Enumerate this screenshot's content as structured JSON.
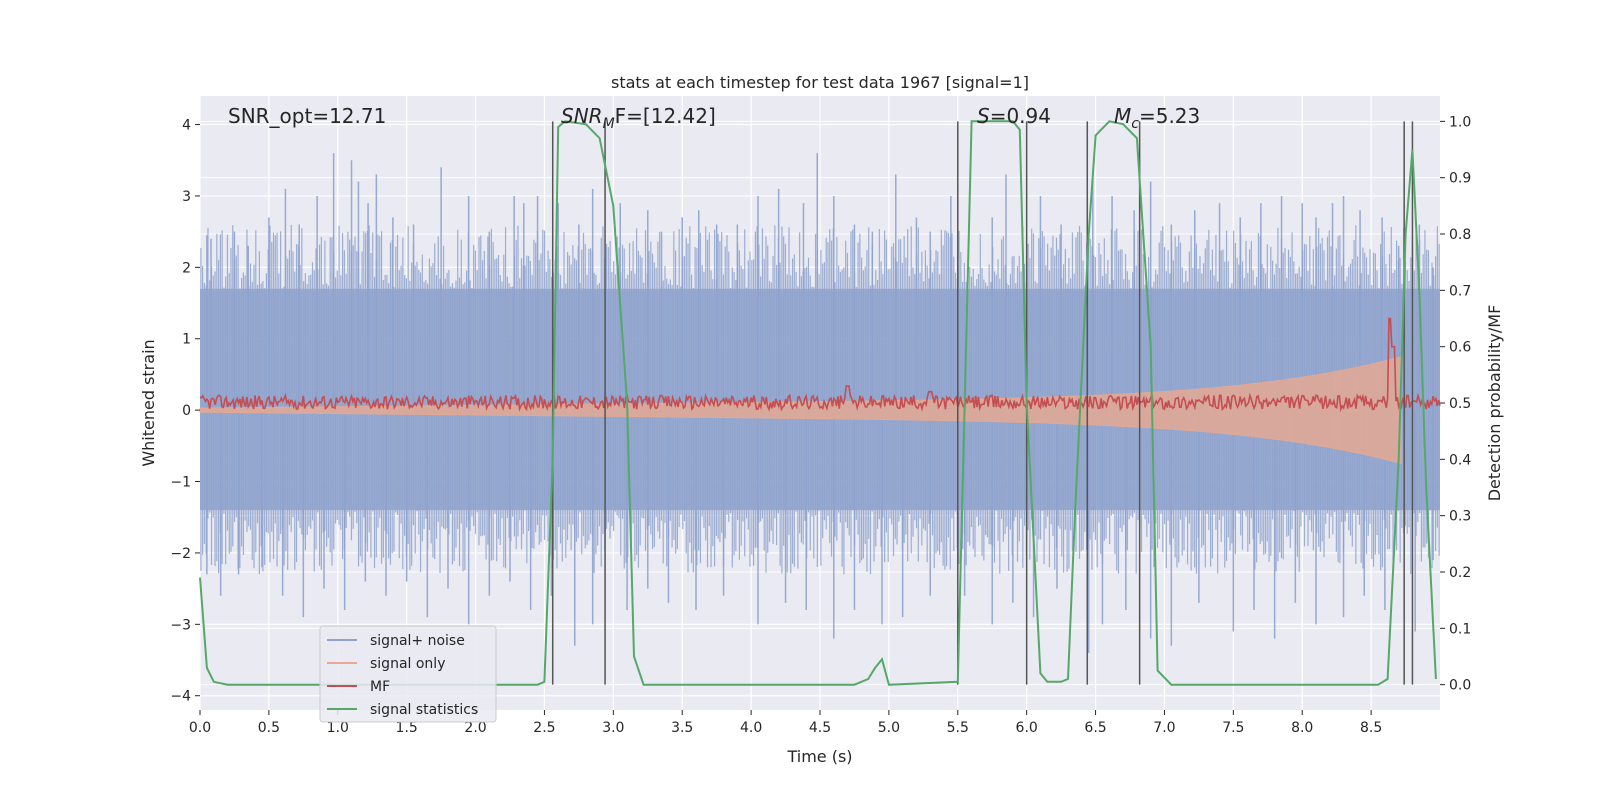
{
  "chart_data": {
    "type": "line",
    "title": "stats at each timestep for test data 1967 [signal=1]",
    "xlabel": "Time (s)",
    "ylabel": "Whitened strain",
    "y2label": "Detection probability/MF",
    "xlim": [
      0,
      9.0
    ],
    "ylim": [
      -4.2,
      4.4
    ],
    "y2lim": [
      -0.045,
      1.045
    ],
    "xticks": [
      "0.0",
      "0.5",
      "1.0",
      "1.5",
      "2.0",
      "2.5",
      "3.0",
      "3.5",
      "4.0",
      "4.5",
      "5.0",
      "5.5",
      "6.0",
      "6.5",
      "7.0",
      "7.5",
      "8.0",
      "8.5"
    ],
    "yticks": [
      "4",
      "3",
      "2",
      "1",
      "0",
      "−1",
      "−2",
      "−3",
      "−4"
    ],
    "y2ticks": [
      "1.0",
      "0.9",
      "0.8",
      "0.7",
      "0.6",
      "0.5",
      "0.4",
      "0.3",
      "0.2",
      "0.1",
      "0.0"
    ],
    "annotations": {
      "snr_opt": "SNR_opt=12.71",
      "snr_mf_main": "SNR",
      "snr_mf_sub": "M",
      "snr_mf_tail": "F=[12.42]",
      "s_main": "S",
      "s_tail": "=0.94",
      "mc_main": "M",
      "mc_sub": "c",
      "mc_tail": "=5.23"
    },
    "legend": {
      "position": "lower-left",
      "entries": [
        {
          "label": "signal+ noise",
          "color": "#8ea2cd"
        },
        {
          "label": "signal only",
          "color": "#e8a98f"
        },
        {
          "label": "MF",
          "color": "#c44e52"
        },
        {
          "label": "signal statistics",
          "color": "#55a868"
        }
      ]
    },
    "vertical_lines_s": [
      2.56,
      2.94,
      5.5,
      6.0,
      6.44,
      6.82,
      8.74,
      8.8
    ],
    "signal_envelope": {
      "name": "signal only",
      "t_end": 8.72,
      "amp_start": 0.03,
      "amp_mid": 0.2,
      "amp_end": 0.75
    },
    "noise_band": {
      "name": "signal+ noise",
      "dense_upper": 1.7,
      "dense_lower": -1.4,
      "spikes_up": [
        [
          0.05,
          2.45
        ],
        [
          0.08,
          2.4
        ],
        [
          0.25,
          2.5
        ],
        [
          0.35,
          2.3
        ],
        [
          0.5,
          2.7
        ],
        [
          0.62,
          3.1
        ],
        [
          0.72,
          2.6
        ],
        [
          0.85,
          3.0
        ],
        [
          0.97,
          3.6
        ],
        [
          1.1,
          3.5
        ],
        [
          1.15,
          3.2
        ],
        [
          1.22,
          2.9
        ],
        [
          1.28,
          3.3
        ],
        [
          1.4,
          2.7
        ],
        [
          1.55,
          2.6
        ],
        [
          1.75,
          3.4
        ],
        [
          1.95,
          3.0
        ],
        [
          2.1,
          2.5
        ],
        [
          2.28,
          3.0
        ],
        [
          2.35,
          2.9
        ],
        [
          2.45,
          3.0
        ],
        [
          2.6,
          2.9
        ],
        [
          2.75,
          2.6
        ],
        [
          2.85,
          3.1
        ],
        [
          3.05,
          2.9
        ],
        [
          3.25,
          2.8
        ],
        [
          3.35,
          2.5
        ],
        [
          3.5,
          2.7
        ],
        [
          3.62,
          2.8
        ],
        [
          3.75,
          2.6
        ],
        [
          3.9,
          2.6
        ],
        [
          4.05,
          3.0
        ],
        [
          4.2,
          3.1
        ],
        [
          4.38,
          2.9
        ],
        [
          4.48,
          3.6
        ],
        [
          4.6,
          3.0
        ],
        [
          4.75,
          2.6
        ],
        [
          4.88,
          2.5
        ],
        [
          5.05,
          3.3
        ],
        [
          5.2,
          2.7
        ],
        [
          5.3,
          2.5
        ],
        [
          5.45,
          3.0
        ],
        [
          5.75,
          2.7
        ],
        [
          5.85,
          3.3
        ],
        [
          6.1,
          3.0
        ],
        [
          6.25,
          2.6
        ],
        [
          6.48,
          3.3
        ],
        [
          6.62,
          3.0
        ],
        [
          6.78,
          2.8
        ],
        [
          6.9,
          3.2
        ],
        [
          7.05,
          2.6
        ],
        [
          7.22,
          2.8
        ],
        [
          7.4,
          2.9
        ],
        [
          7.55,
          2.7
        ],
        [
          7.7,
          2.9
        ],
        [
          7.85,
          3.0
        ],
        [
          8.0,
          2.9
        ],
        [
          8.1,
          2.7
        ],
        [
          8.22,
          2.9
        ],
        [
          8.3,
          3.0
        ],
        [
          8.42,
          2.8
        ],
        [
          8.58,
          2.7
        ],
        [
          8.7,
          2.3
        ],
        [
          8.85,
          2.6
        ],
        [
          8.95,
          2.0
        ]
      ],
      "spikes_down": [
        [
          0.05,
          -2.3
        ],
        [
          0.15,
          -2.6
        ],
        [
          0.28,
          -2.3
        ],
        [
          0.45,
          -2.2
        ],
        [
          0.6,
          -2.6
        ],
        [
          0.75,
          -2.9
        ],
        [
          0.9,
          -2.5
        ],
        [
          1.05,
          -2.8
        ],
        [
          1.2,
          -2.4
        ],
        [
          1.35,
          -2.6
        ],
        [
          1.5,
          -2.4
        ],
        [
          1.65,
          -2.9
        ],
        [
          1.8,
          -2.5
        ],
        [
          1.95,
          -3.0
        ],
        [
          2.1,
          -2.6
        ],
        [
          2.25,
          -2.4
        ],
        [
          2.4,
          -2.8
        ],
        [
          2.55,
          -2.6
        ],
        [
          2.72,
          -3.3
        ],
        [
          2.85,
          -3.0
        ],
        [
          3.1,
          -2.8
        ],
        [
          3.25,
          -2.5
        ],
        [
          3.4,
          -2.7
        ],
        [
          3.6,
          -2.8
        ],
        [
          3.8,
          -2.6
        ],
        [
          4.05,
          -3.0
        ],
        [
          4.25,
          -2.7
        ],
        [
          4.4,
          -2.8
        ],
        [
          4.6,
          -3.2
        ],
        [
          4.75,
          -2.8
        ],
        [
          4.95,
          -3.0
        ],
        [
          5.1,
          -2.9
        ],
        [
          5.3,
          -2.6
        ],
        [
          5.55,
          -2.6
        ],
        [
          5.75,
          -3.0
        ],
        [
          5.9,
          -2.7
        ],
        [
          6.05,
          -2.9
        ],
        [
          6.22,
          -2.5
        ],
        [
          6.45,
          -3.4
        ],
        [
          6.55,
          -3.0
        ],
        [
          6.72,
          -2.8
        ],
        [
          6.9,
          -3.2
        ],
        [
          7.05,
          -3.3
        ],
        [
          7.25,
          -2.7
        ],
        [
          7.5,
          -3.1
        ],
        [
          7.65,
          -2.8
        ],
        [
          7.8,
          -3.2
        ],
        [
          7.95,
          -2.7
        ],
        [
          8.1,
          -3.0
        ],
        [
          8.3,
          -2.9
        ],
        [
          8.45,
          -2.6
        ],
        [
          8.6,
          -2.8
        ],
        [
          8.82,
          -3.1
        ],
        [
          8.95,
          -2.1
        ]
      ]
    },
    "mf_series": {
      "name": "MF",
      "base_prob": 0.5,
      "spikes": [
        [
          4.7,
          0.53
        ],
        [
          5.3,
          0.52
        ],
        [
          8.64,
          0.65
        ],
        [
          8.66,
          0.6
        ]
      ]
    },
    "signal_statistics": {
      "name": "signal statistics",
      "points": [
        [
          0.0,
          0.19
        ],
        [
          0.05,
          0.03
        ],
        [
          0.1,
          0.005
        ],
        [
          0.2,
          0.0
        ],
        [
          2.45,
          0.0
        ],
        [
          2.5,
          0.005
        ],
        [
          2.56,
          0.4
        ],
        [
          2.6,
          0.99
        ],
        [
          2.65,
          1.0
        ],
        [
          2.8,
          0.995
        ],
        [
          2.9,
          0.97
        ],
        [
          3.0,
          0.85
        ],
        [
          3.1,
          0.5
        ],
        [
          3.15,
          0.05
        ],
        [
          3.22,
          0.0
        ],
        [
          4.75,
          0.0
        ],
        [
          4.85,
          0.01
        ],
        [
          4.9,
          0.03
        ],
        [
          4.95,
          0.045
        ],
        [
          5.0,
          0.0
        ],
        [
          5.5,
          0.005
        ],
        [
          5.55,
          0.5
        ],
        [
          5.6,
          1.0
        ],
        [
          5.9,
          1.0
        ],
        [
          5.95,
          0.985
        ],
        [
          6.0,
          0.5
        ],
        [
          6.1,
          0.02
        ],
        [
          6.15,
          0.005
        ],
        [
          6.25,
          0.005
        ],
        [
          6.3,
          0.01
        ],
        [
          6.35,
          0.3
        ],
        [
          6.45,
          0.8
        ],
        [
          6.5,
          0.975
        ],
        [
          6.6,
          1.0
        ],
        [
          6.7,
          0.995
        ],
        [
          6.8,
          0.97
        ],
        [
          6.9,
          0.6
        ],
        [
          6.95,
          0.025
        ],
        [
          7.05,
          0.0
        ],
        [
          8.55,
          0.0
        ],
        [
          8.62,
          0.01
        ],
        [
          8.7,
          0.4
        ],
        [
          8.75,
          0.8
        ],
        [
          8.8,
          0.95
        ],
        [
          8.85,
          0.7
        ],
        [
          8.9,
          0.35
        ],
        [
          8.97,
          0.01
        ]
      ]
    }
  }
}
